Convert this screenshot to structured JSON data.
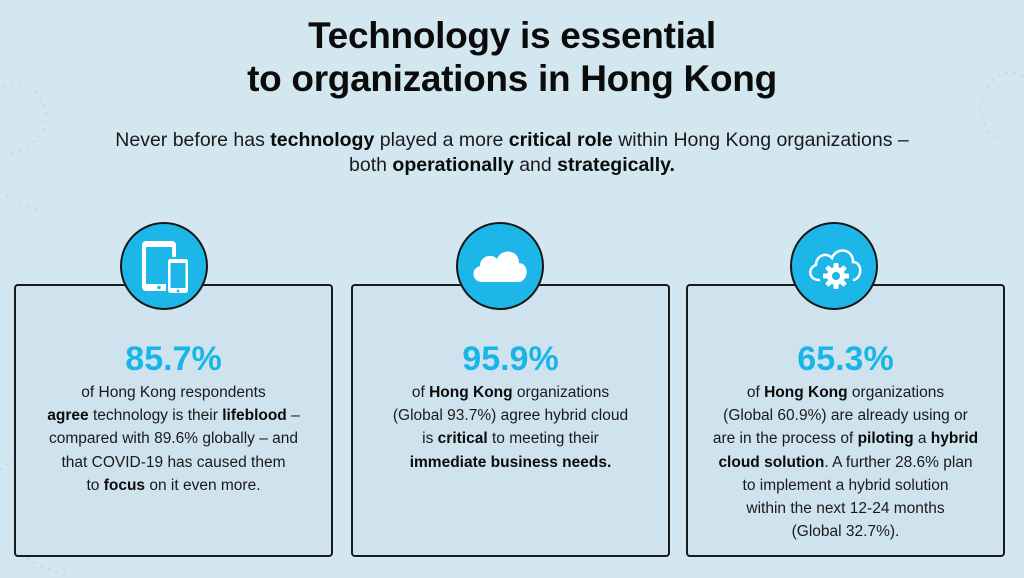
{
  "header": {
    "title_line1": "Technology is essential",
    "title_line2": "to organizations in Hong Kong",
    "subtitle": {
      "p1": "Never before has ",
      "b1": "technology",
      "p2": " played a more ",
      "b2": "critical role",
      "p3": " within Hong Kong organizations –",
      "p4": "both ",
      "b3": "operationally",
      "p5": " and ",
      "b4": "strategically."
    }
  },
  "cards": [
    {
      "icon": "devices-icon",
      "value": "85.7%",
      "t1": "of Hong Kong respondents",
      "b1": "agree",
      "t2": " technology is their ",
      "b2": "lifeblood",
      "t3": " –",
      "t4": "compared with 89.6% globally – and",
      "t5": "that COVID-19 has caused them",
      "t6": "to ",
      "b3": "focus",
      "t7": " on it even more."
    },
    {
      "icon": "cloud-icon",
      "value": "95.9%",
      "t1": "of ",
      "b1": "Hong Kong",
      "t2": " organizations",
      "t3": "(Global 93.7%) agree hybrid cloud",
      "t4": "is ",
      "b2": "critical",
      "t5": " to meeting their",
      "b3": "immediate business needs."
    },
    {
      "icon": "cloud-gear-icon",
      "value": "65.3%",
      "t1": "of ",
      "b1": "Hong Kong",
      "t2": " organizations",
      "t3": "(Global 60.9%) are already using or",
      "t4": "are in the process of ",
      "b2": "piloting",
      "t5": " a ",
      "b3": "hybrid",
      "b4": "cloud solution",
      "t6": ". A further 28.6% plan",
      "t7": "to implement a hybrid solution",
      "t8": "within the next 12-24 months",
      "t9": "(Global 32.7%)."
    }
  ],
  "colors": {
    "background": "#d3e7f1",
    "accent": "#19b5e8",
    "text": "#111111"
  }
}
